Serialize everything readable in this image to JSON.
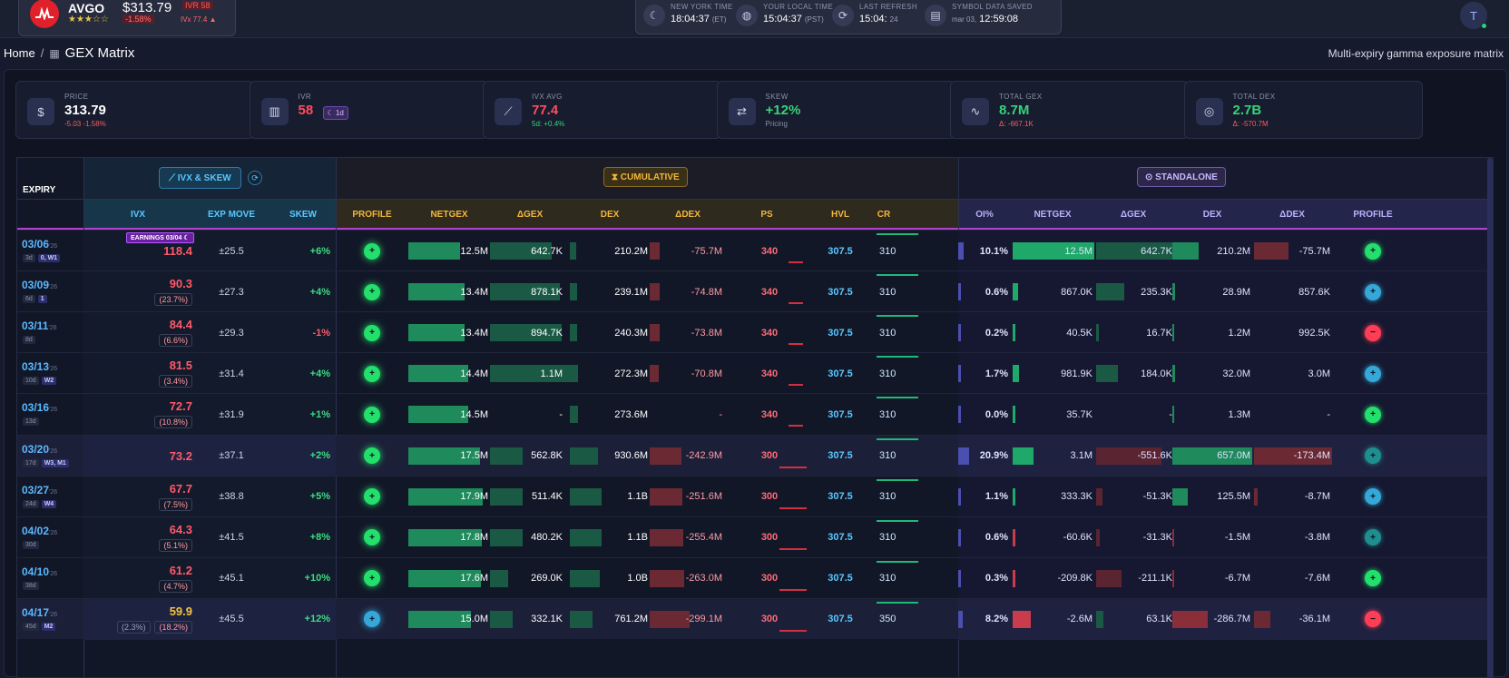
{
  "ticker": {
    "symbol": "AVGO",
    "stars": "★★★☆☆",
    "price": "$313.79",
    "change_pct": "-1.58%",
    "ivr_badge": "IVR 58",
    "ivx_badge": "IVx 77.4 ▲"
  },
  "clocks": [
    {
      "icon": "moon-icon",
      "label": "NEW YORK TIME",
      "time": "18:04:37",
      "zone": "(ET)"
    },
    {
      "icon": "globe-icon",
      "label": "YOUR LOCAL TIME",
      "time": "15:04:37",
      "zone": "(PST)"
    },
    {
      "icon": "refresh-icon",
      "label": "LAST REFRESH",
      "time": "15:04:",
      "zone": "24"
    },
    {
      "icon": "database-icon",
      "label": "SYMBOL DATA SAVED",
      "time": "12:59:08",
      "zone": "mar 03,"
    }
  ],
  "user": {
    "initial": "T"
  },
  "breadcrumb": {
    "home": "Home",
    "sep": "/",
    "title": "GEX Matrix"
  },
  "subtitle": "Multi-expiry gamma exposure matrix",
  "cards": [
    {
      "icon": "dollar-icon",
      "label": "PRICE",
      "value": "313.79",
      "sub": "-5.03 -1.58%",
      "color": "#ffffff",
      "subcolor": "#ff5c5c"
    },
    {
      "icon": "bars-icon",
      "label": "IVR",
      "value": "58",
      "sub": "",
      "badge": "1d",
      "color": "#ff4d5e",
      "subcolor": "#8a91a8"
    },
    {
      "icon": "trend-icon",
      "label": "IVX AVG",
      "value": "77.4",
      "sub": "5d: +0.4%",
      "color": "#ff4d5e",
      "subcolor": "#35d47a"
    },
    {
      "icon": "swap-icon",
      "label": "SKEW",
      "value": "+12%",
      "sub": "Pricing",
      "color": "#35d47a",
      "subcolor": "#8a91a8"
    },
    {
      "icon": "pulse-icon",
      "label": "TOTAL GEX",
      "value": "8.7M",
      "sub": "Δ: -667.1K",
      "color": "#35d47a",
      "subcolor": "#ff5c5c"
    },
    {
      "icon": "target-icon",
      "label": "TOTAL DEX",
      "value": "2.7B",
      "sub": "Δ: -570.7M",
      "color": "#35d47a",
      "subcolor": "#ff5c5c"
    }
  ],
  "groups": {
    "ivx": "IVX & SKEW",
    "cumulative": "CUMULATIVE",
    "standalone": "STANDALONE",
    "expiry": "EXPIRY"
  },
  "columns": {
    "ivx": "IVX",
    "exp_move": "EXP MOVE",
    "skew": "SKEW",
    "profile": "PROFILE",
    "netgex": "NETGEX",
    "dgex": "ΔGEX",
    "dex": "DEX",
    "ddex": "ΔDEX",
    "ps": "PS",
    "hvl": "HVL",
    "cr": "CR",
    "oi": "OI%",
    "s_netgex": "NETGEX",
    "s_dgex": "ΔGEX",
    "s_dex": "DEX",
    "s_ddex": "ΔDEX",
    "s_profile": "PROFILE"
  },
  "earnings_badge": "EARNINGS 03/04",
  "colors": {
    "green": "#1fb877",
    "red": "#ff4d5e",
    "cyan": "#4cc3ff",
    "purple": "#7a3fd0"
  },
  "rows": [
    {
      "date": "03/06",
      "yr": "'26",
      "dte": "3d",
      "tag": "0, W1",
      "ivx": "118.4",
      "ivx_sub": "",
      "ivx_color": "#ff5a6a",
      "exp": "±25.5",
      "skew": "+6%",
      "prof": "g",
      "netgex": "12.5M",
      "ng": 0.65,
      "dgex": "642.7K",
      "dg": 0.75,
      "dex": "210.2M",
      "dx": 0.08,
      "ddex": "-75.7M",
      "dd": 0.13,
      "ps": "340",
      "hvl": "307.5",
      "cr": "310",
      "oi": "10.1%",
      "on": 0.5,
      "s_netgex": "12.5M",
      "sn": 1.0,
      "s_dgex": "642.7K",
      "sg": 1.0,
      "s_dex": "210.2M",
      "sd": 0.33,
      "s_ddex": "-75.7M",
      "sdd": 0.44,
      "sprof": "g"
    },
    {
      "date": "03/09",
      "yr": "'26",
      "dte": "6d",
      "tag": "1",
      "ivx": "90.3",
      "ivx_sub": "(23.7%)",
      "ivx_color": "#ff5a6a",
      "exp": "±27.3",
      "skew": "+4%",
      "prof": "g",
      "netgex": "13.4M",
      "ng": 0.7,
      "dgex": "878.1K",
      "dg": 0.85,
      "dex": "239.1M",
      "dx": 0.09,
      "ddex": "-74.8M",
      "dd": 0.13,
      "ps": "340",
      "hvl": "307.5",
      "cr": "310",
      "oi": "0.6%",
      "on": 0.1,
      "s_netgex": "867.0K",
      "sn": 0.07,
      "s_dgex": "235.3K",
      "sg": 0.37,
      "s_dex": "28.9M",
      "sd": 0.03,
      "s_ddex": "857.6K",
      "sdd": 0.0,
      "sprof": "c"
    },
    {
      "date": "03/11",
      "yr": "'26",
      "dte": "8d",
      "tag": "",
      "ivx": "84.4",
      "ivx_sub": "(6.6%)",
      "ivx_color": "#ff5a6a",
      "exp": "±29.3",
      "skew": "-1%",
      "prof": "g",
      "netgex": "13.4M",
      "ng": 0.7,
      "dgex": "894.7K",
      "dg": 0.88,
      "dex": "240.3M",
      "dx": 0.09,
      "ddex": "-73.8M",
      "dd": 0.13,
      "ps": "340",
      "hvl": "307.5",
      "cr": "310",
      "oi": "0.2%",
      "on": 0.0,
      "s_netgex": "40.5K",
      "sn": 0.01,
      "s_dgex": "16.7K",
      "sg": 0.03,
      "s_dex": "1.2M",
      "sd": 0.0,
      "s_ddex": "992.5K",
      "sdd": 0.0,
      "sprof": "r"
    },
    {
      "date": "03/13",
      "yr": "'26",
      "dte": "10d",
      "tag": "W2",
      "ivx": "81.5",
      "ivx_sub": "(3.4%)",
      "ivx_color": "#ff5a6a",
      "exp": "±31.4",
      "skew": "+4%",
      "prof": "g",
      "netgex": "14.4M",
      "ng": 0.75,
      "dgex": "1.1M",
      "dg": 1.0,
      "dex": "272.3M",
      "dx": 0.1,
      "ddex": "-70.8M",
      "dd": 0.12,
      "ps": "340",
      "hvl": "307.5",
      "cr": "310",
      "oi": "1.7%",
      "on": 0.1,
      "s_netgex": "981.9K",
      "sn": 0.08,
      "s_dgex": "184.0K",
      "sg": 0.29,
      "s_dex": "32.0M",
      "sd": 0.03,
      "s_ddex": "3.0M",
      "sdd": 0.0,
      "sprof": "c"
    },
    {
      "date": "03/16",
      "yr": "'26",
      "dte": "13d",
      "tag": "",
      "ivx": "72.7",
      "ivx_sub": "(10.8%)",
      "ivx_color": "#ff5a6a",
      "exp": "±31.9",
      "skew": "+1%",
      "prof": "g",
      "netgex": "14.5M",
      "ng": 0.75,
      "dgex": "-",
      "dg": 0.0,
      "dex": "273.6M",
      "dx": 0.1,
      "ddex": "-",
      "dd": 0.0,
      "ps": "340",
      "hvl": "307.5",
      "cr": "310",
      "oi": "0.0%",
      "on": 0.0,
      "s_netgex": "35.7K",
      "sn": 0.0,
      "s_dgex": "-",
      "sg": 0.0,
      "s_dex": "1.3M",
      "sd": 0.0,
      "s_ddex": "-",
      "sdd": 0.0,
      "sprof": "g"
    },
    {
      "date": "03/20",
      "yr": "'26",
      "dte": "17d",
      "tag": "W3, M1",
      "ivx": "73.2",
      "ivx_sub": "",
      "ivx_color": "#ff5a6a",
      "exp": "±37.1",
      "skew": "+2%",
      "prof": "g",
      "netgex": "17.5M",
      "ng": 0.9,
      "dgex": "562.8K",
      "dg": 0.4,
      "dex": "930.6M",
      "dx": 0.35,
      "ddex": "-242.9M",
      "dd": 0.42,
      "ps": "300",
      "hvl": "307.5",
      "cr": "310",
      "oi": "20.9%",
      "on": 1.0,
      "s_netgex": "3.1M",
      "sn": 0.26,
      "s_dgex": "-551.6K",
      "sg": 0.86,
      "s_dex": "657.0M",
      "sd": 1.0,
      "s_ddex": "-173.4M",
      "sdd": 1.0,
      "sprof": "t"
    },
    {
      "date": "03/27",
      "yr": "'26",
      "dte": "24d",
      "tag": "W4",
      "ivx": "67.7",
      "ivx_sub": "(7.5%)",
      "ivx_color": "#ff5a6a",
      "exp": "±38.8",
      "skew": "+5%",
      "prof": "g",
      "netgex": "17.9M",
      "ng": 0.93,
      "dgex": "511.4K",
      "dg": 0.4,
      "dex": "1.1B",
      "dx": 0.4,
      "ddex": "-251.6M",
      "dd": 0.43,
      "ps": "300",
      "hvl": "307.5",
      "cr": "310",
      "oi": "1.1%",
      "on": 0.05,
      "s_netgex": "333.3K",
      "sn": 0.03,
      "s_dgex": "-51.3K",
      "sg": 0.08,
      "s_dex": "125.5M",
      "sd": 0.19,
      "s_ddex": "-8.7M",
      "sdd": 0.05,
      "sprof": "c"
    },
    {
      "date": "04/02",
      "yr": "'26",
      "dte": "30d",
      "tag": "",
      "ivx": "64.3",
      "ivx_sub": "(5.1%)",
      "ivx_color": "#ff5a6a",
      "exp": "±41.5",
      "skew": "+8%",
      "prof": "g",
      "netgex": "17.8M",
      "ng": 0.92,
      "dgex": "480.2K",
      "dg": 0.4,
      "dex": "1.1B",
      "dx": 0.4,
      "ddex": "-255.4M",
      "dd": 0.44,
      "ps": "300",
      "hvl": "307.5",
      "cr": "310",
      "oi": "0.6%",
      "on": 0.0,
      "s_netgex": "-60.6K",
      "sn": 0.01,
      "s_dgex": "-31.3K",
      "sg": 0.05,
      "s_dex": "-1.5M",
      "sd": 0.0,
      "s_ddex": "-3.8M",
      "sdd": 0.0,
      "sprof": "t"
    },
    {
      "date": "04/10",
      "yr": "'26",
      "dte": "38d",
      "tag": "",
      "ivx": "61.2",
      "ivx_sub": "(4.7%)",
      "ivx_color": "#ff5a6a",
      "exp": "±45.1",
      "skew": "+10%",
      "prof": "g",
      "netgex": "17.6M",
      "ng": 0.91,
      "dgex": "269.0K",
      "dg": 0.22,
      "dex": "1.0B",
      "dx": 0.38,
      "ddex": "-263.0M",
      "dd": 0.45,
      "ps": "300",
      "hvl": "307.5",
      "cr": "310",
      "oi": "0.3%",
      "on": 0.0,
      "s_netgex": "-209.8K",
      "sn": 0.02,
      "s_dgex": "-211.1K",
      "sg": 0.33,
      "s_dex": "-6.7M",
      "sd": 0.0,
      "s_ddex": "-7.6M",
      "sdd": 0.0,
      "sprof": "g"
    },
    {
      "date": "04/17",
      "yr": "'26",
      "dte": "45d",
      "tag": "M2",
      "ivx": "59.9",
      "ivx_sub": "(18.2%)",
      "ivx_sub2": "(2.3%)",
      "ivx_color": "#f5c542",
      "exp": "±45.5",
      "skew": "+12%",
      "prof": "c",
      "netgex": "15.0M",
      "ng": 0.78,
      "dgex": "332.1K",
      "dg": 0.28,
      "dex": "761.2M",
      "dx": 0.28,
      "ddex": "-299.1M",
      "dd": 0.52,
      "ps": "300",
      "hvl": "307.5",
      "cr": "350",
      "oi": "8.2%",
      "on": 0.4,
      "s_netgex": "-2.6M",
      "sn": 0.22,
      "s_dgex": "63.1K",
      "sg": 0.1,
      "s_dex": "-286.7M",
      "sd": 0.44,
      "s_ddex": "-36.1M",
      "sdd": 0.21,
      "sprof": "r"
    }
  ]
}
